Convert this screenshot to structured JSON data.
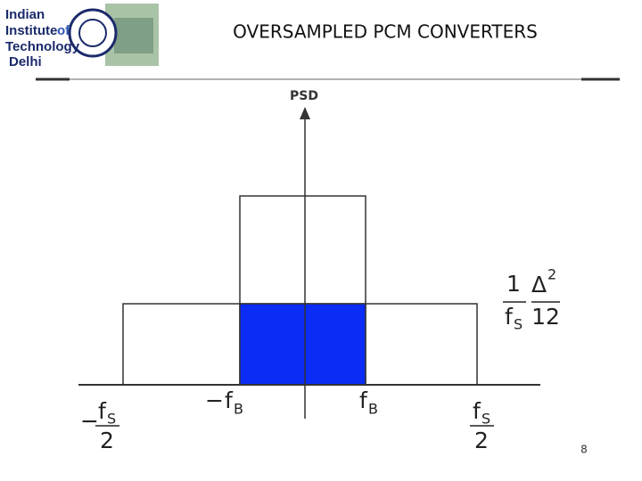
{
  "header": {
    "logo": {
      "lines": [
        "Indian",
        "Institute",
        "of",
        "Technology",
        "Delhi"
      ]
    },
    "title": "OVERSAMPLED PCM CONVERTERS"
  },
  "diagram": {
    "axis_label": "PSD",
    "x_labels": [
      {
        "sign": "−",
        "num": "f",
        "num_sub": "S",
        "den": "2"
      },
      {
        "sign": "−",
        "main": "f",
        "sub": "B"
      },
      {
        "main": "f",
        "sub": "B"
      },
      {
        "num": "f",
        "num_sub": "S",
        "den": "2"
      }
    ],
    "level_label": {
      "num1": "1",
      "den1": "f",
      "den1_sub": "S",
      "num2": "Δ",
      "num2_sup": "2",
      "den2": "12"
    }
  },
  "page_number": "8"
}
